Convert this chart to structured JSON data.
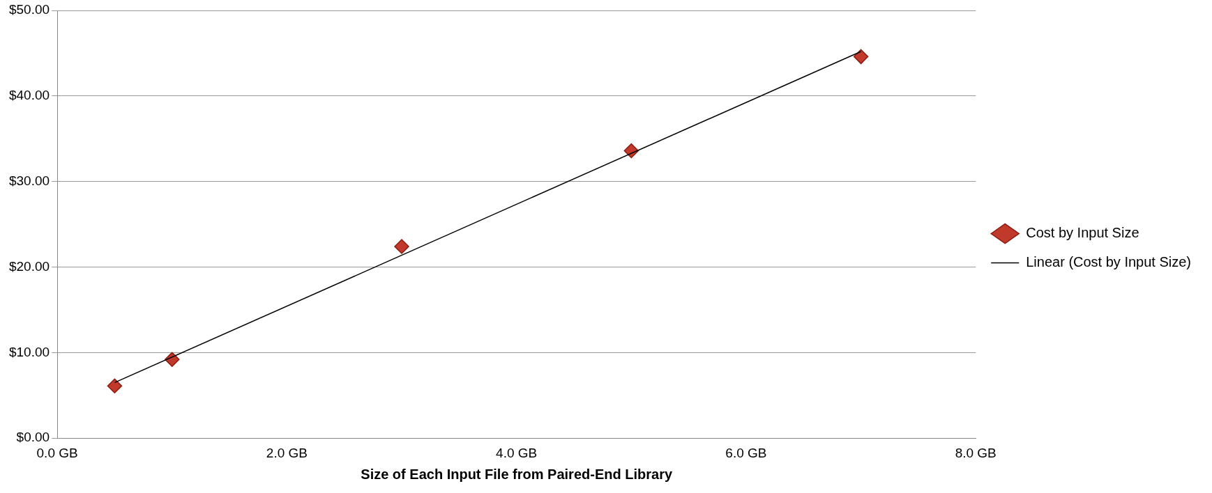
{
  "chart_data": {
    "type": "scatter",
    "xlabel": "Size of Each Input File from Paired-End Library",
    "series": [
      {
        "name": "Cost by Input Size",
        "color": "#c0392b",
        "marker": "diamond",
        "x": [
          0.5,
          1,
          3,
          5,
          7
        ],
        "values": [
          6.1,
          9.2,
          22.4,
          33.6,
          44.6
        ]
      },
      {
        "name": "Linear (Cost by Input Size)",
        "type": "line",
        "color": "#000000",
        "marker": "none",
        "x": [
          0.5,
          7
        ],
        "values": [
          6.5,
          45.2
        ]
      }
    ],
    "xlim": [
      0,
      8
    ],
    "xticks": [
      {
        "value": 0,
        "label": "0.0 GB"
      },
      {
        "value": 2,
        "label": "2.0 GB"
      },
      {
        "value": 4,
        "label": "4.0 GB"
      },
      {
        "value": 6,
        "label": "6.0 GB"
      },
      {
        "value": 8,
        "label": "8.0 GB"
      }
    ],
    "ylim": [
      0,
      50
    ],
    "yticks": [
      {
        "value": 0,
        "label": "$0.00"
      },
      {
        "value": 10,
        "label": "$10.00"
      },
      {
        "value": 20,
        "label": "$20.00"
      },
      {
        "value": 30,
        "label": "$30.00"
      },
      {
        "value": 40,
        "label": "$40.00"
      },
      {
        "value": 50,
        "label": "$50.00"
      }
    ],
    "grid": "y",
    "legend": "right"
  }
}
